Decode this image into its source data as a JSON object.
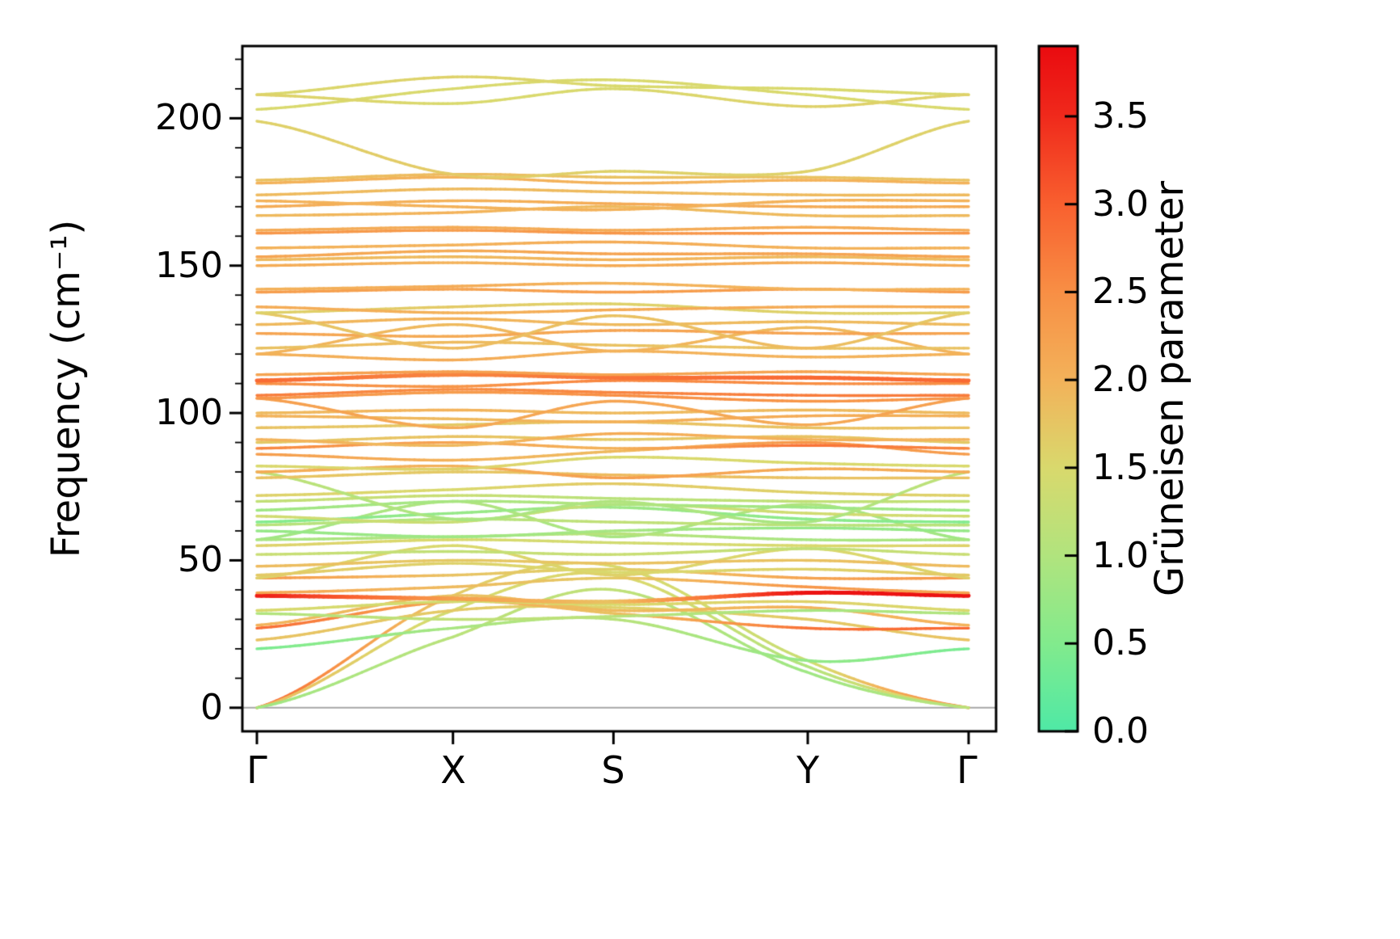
{
  "chart_data": {
    "type": "line",
    "title": "",
    "xlabel": "",
    "ylabel": "Frequency (cm⁻¹)",
    "x_tick_labels": [
      "Γ",
      "X",
      "S",
      "Y",
      "Γ"
    ],
    "x_tick_positions": [
      0,
      0.2755,
      0.501,
      0.774,
      1.0
    ],
    "y_ticks": [
      0,
      50,
      100,
      150,
      200
    ],
    "y_tick_labels": [
      "0",
      "50",
      "100",
      "150",
      "200"
    ],
    "ylim": [
      -8,
      224.5
    ],
    "grid": false,
    "zero_line": {
      "y": 0,
      "color": "#a6a6a6"
    },
    "frame_color": "#000000",
    "colorbar": {
      "label": "Grüneisen parameter",
      "ticks": [
        0.0,
        0.5,
        1.0,
        1.5,
        2.0,
        2.5,
        3.0,
        3.5
      ],
      "tick_labels": [
        "0.0",
        "0.5",
        "1.0",
        "1.5",
        "2.0",
        "2.5",
        "3.0",
        "3.5"
      ],
      "vmin": 0.0,
      "vmax": 3.9,
      "stops": [
        [
          0.0,
          "#4FE9A6"
        ],
        [
          0.5,
          "#82EB8D"
        ],
        [
          1.0,
          "#B1E47E"
        ],
        [
          1.5,
          "#D9D96D"
        ],
        [
          2.0,
          "#F3B25A"
        ],
        [
          2.5,
          "#F88F45"
        ],
        [
          3.0,
          "#F9602F"
        ],
        [
          3.5,
          "#F02A1C"
        ],
        [
          3.9,
          "#EA0B10"
        ]
      ]
    },
    "bands": [
      {
        "f": [
          0,
          38,
          48,
          16,
          0
        ],
        "g": [
          3.0,
          1.7,
          1.5,
          1.3,
          2.8
        ]
      },
      {
        "f": [
          0,
          33,
          45,
          14,
          0
        ],
        "g": [
          1.9,
          1.4,
          1.6,
          1.0,
          1.9
        ]
      },
      {
        "f": [
          0,
          24,
          40,
          12,
          0
        ],
        "g": [
          0.8,
          1.1,
          1.2,
          0.8,
          1.1
        ]
      },
      {
        "f": [
          20,
          27,
          30,
          16,
          20
        ],
        "g": [
          0.4,
          0.9,
          1.1,
          0.7,
          0.4
        ]
      },
      {
        "f": [
          23,
          33,
          34,
          30,
          23
        ],
        "g": [
          1.8,
          1.7,
          1.6,
          1.7,
          1.8
        ]
      },
      {
        "f": [
          27,
          36,
          32,
          27,
          27
        ],
        "g": [
          2.9,
          2.2,
          1.8,
          2.8,
          2.9
        ]
      },
      {
        "f": [
          28,
          38,
          33,
          34,
          28
        ],
        "g": [
          2.0,
          1.8,
          1.9,
          2.0,
          2.0
        ]
      },
      {
        "f": [
          32,
          30,
          31,
          33,
          32
        ],
        "g": [
          1.0,
          1.2,
          1.1,
          0.9,
          1.0
        ]
      },
      {
        "f": [
          33,
          36,
          35,
          36,
          33
        ],
        "g": [
          1.5,
          1.4,
          1.5,
          1.6,
          1.5
        ]
      },
      {
        "f": [
          38,
          37,
          36,
          39,
          38
        ],
        "g": [
          3.7,
          2.3,
          1.8,
          3.8,
          3.8
        ],
        "w": 5
      },
      {
        "f": [
          39,
          41,
          44,
          41,
          39
        ],
        "g": [
          2.2,
          1.9,
          1.7,
          2.4,
          2.2
        ]
      },
      {
        "f": [
          44,
          45,
          47,
          44,
          44
        ],
        "g": [
          2.4,
          1.8,
          1.6,
          2.2,
          2.4
        ]
      },
      {
        "f": [
          44,
          55,
          45,
          54,
          44
        ],
        "g": [
          1.6,
          1.5,
          1.6,
          1.5,
          1.6
        ]
      },
      {
        "f": [
          45,
          49,
          46,
          47,
          45
        ],
        "g": [
          1.7,
          1.6,
          1.5,
          1.6,
          1.7
        ]
      },
      {
        "f": [
          48,
          50,
          49,
          50,
          48
        ],
        "g": [
          1.9,
          1.7,
          1.8,
          1.8,
          1.9
        ]
      },
      {
        "f": [
          52,
          53,
          52,
          54,
          52
        ],
        "g": [
          1.3,
          1.2,
          1.3,
          1.2,
          1.3
        ]
      },
      {
        "f": [
          55,
          57,
          56,
          55,
          55
        ],
        "g": [
          1.6,
          1.5,
          1.4,
          1.5,
          1.6
        ]
      },
      {
        "f": [
          57,
          70,
          58,
          69,
          57
        ],
        "g": [
          0.8,
          1.0,
          0.9,
          1.0,
          0.8
        ]
      },
      {
        "f": [
          57,
          58,
          59,
          57,
          57
        ],
        "g": [
          0.9,
          1.0,
          1.1,
          0.9,
          0.9
        ]
      },
      {
        "f": [
          60,
          58,
          60,
          61,
          60
        ],
        "g": [
          0.7,
          0.8,
          0.9,
          0.7,
          0.7
        ]
      },
      {
        "f": [
          62,
          64,
          63,
          62,
          62
        ],
        "g": [
          1.1,
          1.0,
          1.2,
          1.1,
          1.1
        ]
      },
      {
        "f": [
          63,
          66,
          68,
          64,
          63
        ],
        "g": [
          0.5,
          0.7,
          0.8,
          0.6,
          0.5
        ]
      },
      {
        "f": [
          65,
          63,
          69,
          66,
          65
        ],
        "g": [
          1.4,
          1.3,
          1.2,
          1.4,
          1.4
        ]
      },
      {
        "f": [
          67,
          70,
          69,
          68,
          67
        ],
        "g": [
          0.8,
          0.9,
          1.0,
          0.8,
          0.8
        ]
      },
      {
        "f": [
          70,
          72,
          71,
          70,
          70
        ],
        "g": [
          1.2,
          1.3,
          1.1,
          1.2,
          1.2
        ]
      },
      {
        "f": [
          72,
          74,
          76,
          73,
          72
        ],
        "g": [
          1.6,
          1.5,
          1.7,
          1.6,
          1.6
        ]
      },
      {
        "f": [
          80,
          64,
          70,
          63,
          80
        ],
        "g": [
          1.2,
          0.9,
          1.0,
          0.9,
          1.2
        ]
      },
      {
        "f": [
          78,
          80,
          79,
          78,
          78
        ],
        "g": [
          1.8,
          1.7,
          1.9,
          1.8,
          1.8
        ]
      },
      {
        "f": [
          80,
          82,
          78,
          81,
          80
        ],
        "g": [
          2.1,
          2.0,
          2.3,
          2.1,
          2.1
        ]
      },
      {
        "f": [
          82,
          81,
          85,
          83,
          82
        ],
        "g": [
          1.5,
          1.6,
          1.5,
          1.5,
          1.5
        ]
      },
      {
        "f": [
          86,
          84,
          87,
          90,
          86
        ],
        "g": [
          2.3,
          2.0,
          1.9,
          2.4,
          2.3
        ]
      },
      {
        "f": [
          88,
          90,
          88,
          89,
          88
        ],
        "g": [
          2.6,
          2.2,
          2.0,
          2.8,
          2.6
        ]
      },
      {
        "f": [
          90,
          92,
          91,
          92,
          90
        ],
        "g": [
          1.7,
          1.8,
          1.7,
          1.8,
          1.7
        ]
      },
      {
        "f": [
          91,
          89,
          93,
          91,
          91
        ],
        "g": [
          2.0,
          1.9,
          2.1,
          2.0,
          2.0
        ]
      },
      {
        "f": [
          95,
          96,
          97,
          95,
          95
        ],
        "g": [
          1.8,
          1.7,
          1.8,
          1.8,
          1.8
        ]
      },
      {
        "f": [
          99,
          98,
          97,
          99,
          99
        ],
        "g": [
          2.0,
          1.9,
          2.0,
          2.1,
          2.0
        ]
      },
      {
        "f": [
          100,
          101,
          100,
          101,
          100
        ],
        "g": [
          1.9,
          2.0,
          1.9,
          1.9,
          1.9
        ]
      },
      {
        "f": [
          105,
          95,
          104,
          96,
          105
        ],
        "g": [
          2.3,
          2.1,
          2.2,
          2.1,
          2.3
        ]
      },
      {
        "f": [
          105,
          107,
          106,
          104,
          105
        ],
        "g": [
          2.4,
          2.3,
          2.5,
          2.4,
          2.4
        ]
      },
      {
        "f": [
          106,
          108,
          107,
          106,
          106
        ],
        "g": [
          2.7,
          2.5,
          2.6,
          2.7,
          2.7
        ]
      },
      {
        "f": [
          110,
          109,
          111,
          110,
          110
        ],
        "g": [
          2.5,
          2.4,
          2.6,
          2.5,
          2.5
        ]
      },
      {
        "f": [
          111,
          113,
          112,
          112,
          111
        ],
        "g": [
          2.9,
          2.6,
          2.8,
          2.9,
          2.9
        ],
        "w": 5
      },
      {
        "f": [
          113,
          114,
          113,
          114,
          113
        ],
        "g": [
          2.2,
          2.3,
          2.2,
          2.2,
          2.2
        ]
      },
      {
        "f": [
          120,
          118,
          121,
          119,
          120
        ],
        "g": [
          2.0,
          2.1,
          2.0,
          2.0,
          2.0
        ]
      },
      {
        "f": [
          120,
          130,
          121,
          129,
          120
        ],
        "g": [
          2.0,
          1.9,
          2.0,
          1.9,
          2.0
        ]
      },
      {
        "f": [
          122,
          124,
          123,
          122,
          122
        ],
        "g": [
          1.8,
          1.9,
          1.8,
          1.8,
          1.8
        ]
      },
      {
        "f": [
          127,
          126,
          128,
          127,
          127
        ],
        "g": [
          2.2,
          2.1,
          2.2,
          2.2,
          2.2
        ]
      },
      {
        "f": [
          130,
          132,
          130,
          131,
          130
        ],
        "g": [
          1.9,
          2.0,
          1.9,
          1.9,
          1.9
        ]
      },
      {
        "f": [
          134,
          122,
          133,
          122,
          134
        ],
        "g": [
          1.7,
          1.9,
          1.8,
          1.9,
          1.7
        ]
      },
      {
        "f": [
          134,
          136,
          137,
          134,
          134
        ],
        "g": [
          1.6,
          1.7,
          1.6,
          1.6,
          1.6
        ]
      },
      {
        "f": [
          136,
          134,
          135,
          136,
          136
        ],
        "g": [
          2.1,
          2.0,
          2.1,
          2.1,
          2.1
        ]
      },
      {
        "f": [
          141,
          142,
          141,
          142,
          141
        ],
        "g": [
          2.3,
          2.2,
          2.3,
          2.3,
          2.3
        ]
      },
      {
        "f": [
          142,
          143,
          144,
          142,
          142
        ],
        "g": [
          2.0,
          2.1,
          2.0,
          2.0,
          2.0
        ]
      },
      {
        "f": [
          150,
          151,
          150,
          151,
          150
        ],
        "g": [
          2.1,
          2.0,
          2.1,
          2.1,
          2.1
        ]
      },
      {
        "f": [
          152,
          153,
          152,
          153,
          152
        ],
        "g": [
          1.9,
          1.9,
          2.0,
          1.9,
          1.9
        ]
      },
      {
        "f": [
          153,
          155,
          154,
          154,
          153
        ],
        "g": [
          2.2,
          2.1,
          2.2,
          2.2,
          2.2
        ]
      },
      {
        "f": [
          156,
          157,
          158,
          156,
          156
        ],
        "g": [
          2.0,
          2.0,
          2.1,
          2.0,
          2.0
        ]
      },
      {
        "f": [
          161,
          162,
          161,
          161,
          161
        ],
        "g": [
          2.4,
          2.3,
          2.4,
          2.4,
          2.4
        ]
      },
      {
        "f": [
          162,
          163,
          162,
          163,
          162
        ],
        "g": [
          2.1,
          2.1,
          2.1,
          2.1,
          2.1
        ]
      },
      {
        "f": [
          167,
          168,
          170,
          167,
          167
        ],
        "g": [
          1.9,
          2.0,
          1.9,
          1.9,
          1.9
        ]
      },
      {
        "f": [
          170,
          172,
          171,
          170,
          170
        ],
        "g": [
          2.1,
          2.0,
          2.1,
          2.1,
          2.1
        ]
      },
      {
        "f": [
          172,
          170,
          169,
          172,
          172
        ],
        "g": [
          2.0,
          2.0,
          2.0,
          2.0,
          2.0
        ]
      },
      {
        "f": [
          174,
          176,
          175,
          174,
          174
        ],
        "g": [
          1.9,
          1.9,
          1.9,
          1.9,
          1.9
        ]
      },
      {
        "f": [
          178,
          180,
          178,
          179,
          178
        ],
        "g": [
          2.0,
          2.0,
          2.0,
          2.0,
          2.0
        ]
      },
      {
        "f": [
          179,
          181,
          180,
          180,
          179
        ],
        "g": [
          1.8,
          1.9,
          1.8,
          1.8,
          1.8
        ]
      },
      {
        "f": [
          199,
          181,
          182,
          182,
          199
        ],
        "g": [
          1.6,
          1.7,
          1.6,
          1.6,
          1.6
        ]
      },
      {
        "f": [
          203,
          210,
          213,
          208,
          203
        ],
        "g": [
          1.5,
          1.5,
          1.5,
          1.5,
          1.5
        ]
      },
      {
        "f": [
          208,
          214,
          211,
          210,
          208
        ],
        "g": [
          1.5,
          1.6,
          1.5,
          1.5,
          1.5
        ]
      },
      {
        "f": [
          208,
          205,
          210,
          204,
          208
        ],
        "g": [
          1.6,
          1.5,
          1.5,
          1.6,
          1.6
        ]
      }
    ]
  }
}
